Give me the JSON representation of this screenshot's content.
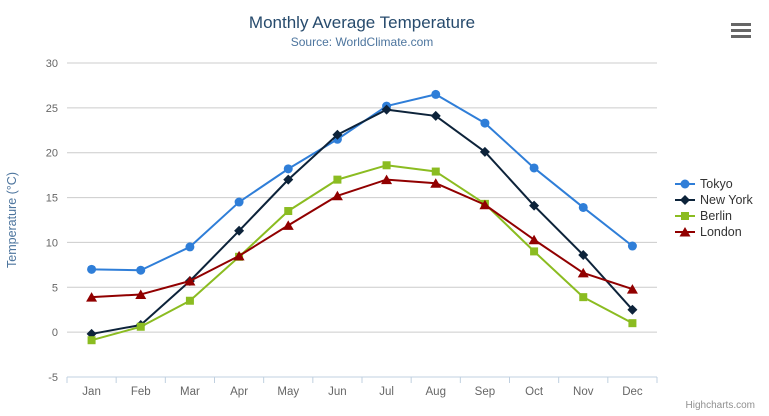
{
  "chart_data": {
    "type": "line",
    "title": "Monthly Average Temperature",
    "subtitle": "Source: WorldClimate.com",
    "categories": [
      "Jan",
      "Feb",
      "Mar",
      "Apr",
      "May",
      "Jun",
      "Jul",
      "Aug",
      "Sep",
      "Oct",
      "Nov",
      "Dec"
    ],
    "series": [
      {
        "name": "Tokyo",
        "color": "#2f7ed8",
        "marker": "circle",
        "values": [
          7.0,
          6.9,
          9.5,
          14.5,
          18.2,
          21.5,
          25.2,
          26.5,
          23.3,
          18.3,
          13.9,
          9.6
        ]
      },
      {
        "name": "New York",
        "color": "#0d233a",
        "marker": "diamond",
        "values": [
          -0.2,
          0.8,
          5.7,
          11.3,
          17.0,
          22.0,
          24.8,
          24.1,
          20.1,
          14.1,
          8.6,
          2.5
        ]
      },
      {
        "name": "Berlin",
        "color": "#8bbc21",
        "marker": "square",
        "values": [
          -0.9,
          0.6,
          3.5,
          8.4,
          13.5,
          17.0,
          18.6,
          17.9,
          14.3,
          9.0,
          3.9,
          1.0
        ]
      },
      {
        "name": "London",
        "color": "#910000",
        "marker": "triangle",
        "values": [
          3.9,
          4.2,
          5.7,
          8.5,
          11.9,
          15.2,
          17.0,
          16.6,
          14.2,
          10.3,
          6.6,
          4.8
        ]
      }
    ],
    "xlabel": "",
    "ylabel": "Temperature (°C)",
    "ylim": [
      -5,
      30
    ],
    "yticks": [
      -5,
      0,
      5,
      10,
      15,
      20,
      25,
      30
    ],
    "grid": true,
    "legend_position": "right"
  },
  "credits": {
    "label": "Highcharts.com"
  },
  "colors": {
    "grid": "#cccccc",
    "axis_line": "#c0d0e0",
    "tick_label": "#666666",
    "title": "#274b6d",
    "subtitle": "#4d759e",
    "axis_title": "#4d759e",
    "legend_text": "#333333",
    "credits": "#909090",
    "menu_icon": "#666666"
  }
}
